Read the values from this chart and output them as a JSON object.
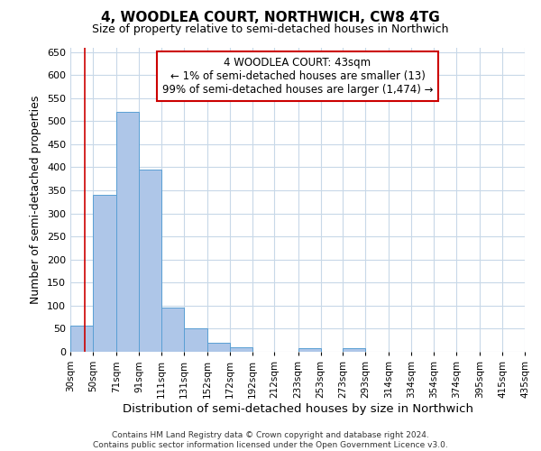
{
  "title": "4, WOODLEA COURT, NORTHWICH, CW8 4TG",
  "subtitle": "Size of property relative to semi-detached houses in Northwich",
  "xlabel": "Distribution of semi-detached houses by size in Northwich",
  "ylabel": "Number of semi-detached properties",
  "bin_edges": [
    30,
    50,
    71,
    91,
    111,
    131,
    152,
    172,
    192,
    212,
    233,
    253,
    273,
    293,
    314,
    334,
    354,
    374,
    395,
    415,
    435
  ],
  "bar_heights": [
    57,
    340,
    520,
    395,
    95,
    50,
    20,
    10,
    0,
    0,
    8,
    0,
    8,
    0,
    0,
    0,
    0,
    0,
    0,
    0,
    5
  ],
  "bar_color": "#aec6e8",
  "bar_edgecolor": "#5a9fd4",
  "property_line_x": 43,
  "property_line_color": "#cc0000",
  "annotation_title": "4 WOODLEA COURT: 43sqm",
  "annotation_line1": "← 1% of semi-detached houses are smaller (13)",
  "annotation_line2": "99% of semi-detached houses are larger (1,474) →",
  "annotation_box_color": "#cc0000",
  "ylim": [
    0,
    660
  ],
  "yticks": [
    0,
    50,
    100,
    150,
    200,
    250,
    300,
    350,
    400,
    450,
    500,
    550,
    600,
    650
  ],
  "tick_labels": [
    "30sqm",
    "50sqm",
    "71sqm",
    "91sqm",
    "111sqm",
    "131sqm",
    "152sqm",
    "172sqm",
    "192sqm",
    "212sqm",
    "233sqm",
    "253sqm",
    "273sqm",
    "293sqm",
    "314sqm",
    "334sqm",
    "354sqm",
    "374sqm",
    "395sqm",
    "415sqm",
    "435sqm"
  ],
  "footer_line1": "Contains HM Land Registry data © Crown copyright and database right 2024.",
  "footer_line2": "Contains public sector information licensed under the Open Government Licence v3.0.",
  "bg_color": "#ffffff",
  "grid_color": "#c8d8e8"
}
